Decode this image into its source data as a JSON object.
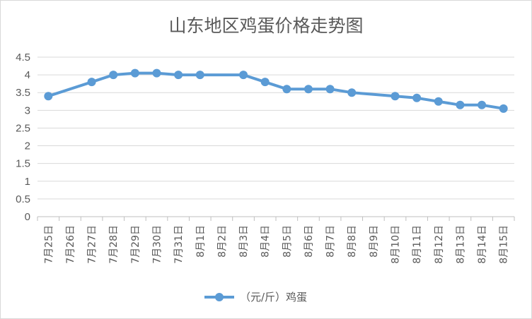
{
  "chart_data": {
    "type": "line",
    "title": "山东地区鸡蛋价格走势图",
    "categories": [
      "7月25日",
      "7月26日",
      "7月27日",
      "7月28日",
      "7月29日",
      "7月30日",
      "7月31日",
      "8月1日",
      "8月2日",
      "8月3日",
      "8月4日",
      "8月5日",
      "8月6日",
      "8月7日",
      "8月8日",
      "8月9日",
      "8月10日",
      "8月11日",
      "8月12日",
      "8月13日",
      "8月14日",
      "8月15日"
    ],
    "series": [
      {
        "name": "（元/斤）鸡蛋",
        "color": "#5b9bd5",
        "values": [
          3.4,
          null,
          3.8,
          4.0,
          4.05,
          4.05,
          4.0,
          4.0,
          null,
          4.0,
          3.8,
          3.6,
          3.6,
          3.6,
          3.5,
          null,
          3.4,
          3.35,
          3.25,
          3.15,
          3.15,
          3.05
        ]
      }
    ],
    "y_ticks": [
      "0",
      "0.5",
      "1",
      "1.5",
      "2",
      "2.5",
      "3",
      "3.5",
      "4",
      "4.5"
    ],
    "ylim": [
      0,
      4.5
    ],
    "grid": true,
    "legend_position": "bottom",
    "xlabel": "",
    "ylabel": ""
  }
}
